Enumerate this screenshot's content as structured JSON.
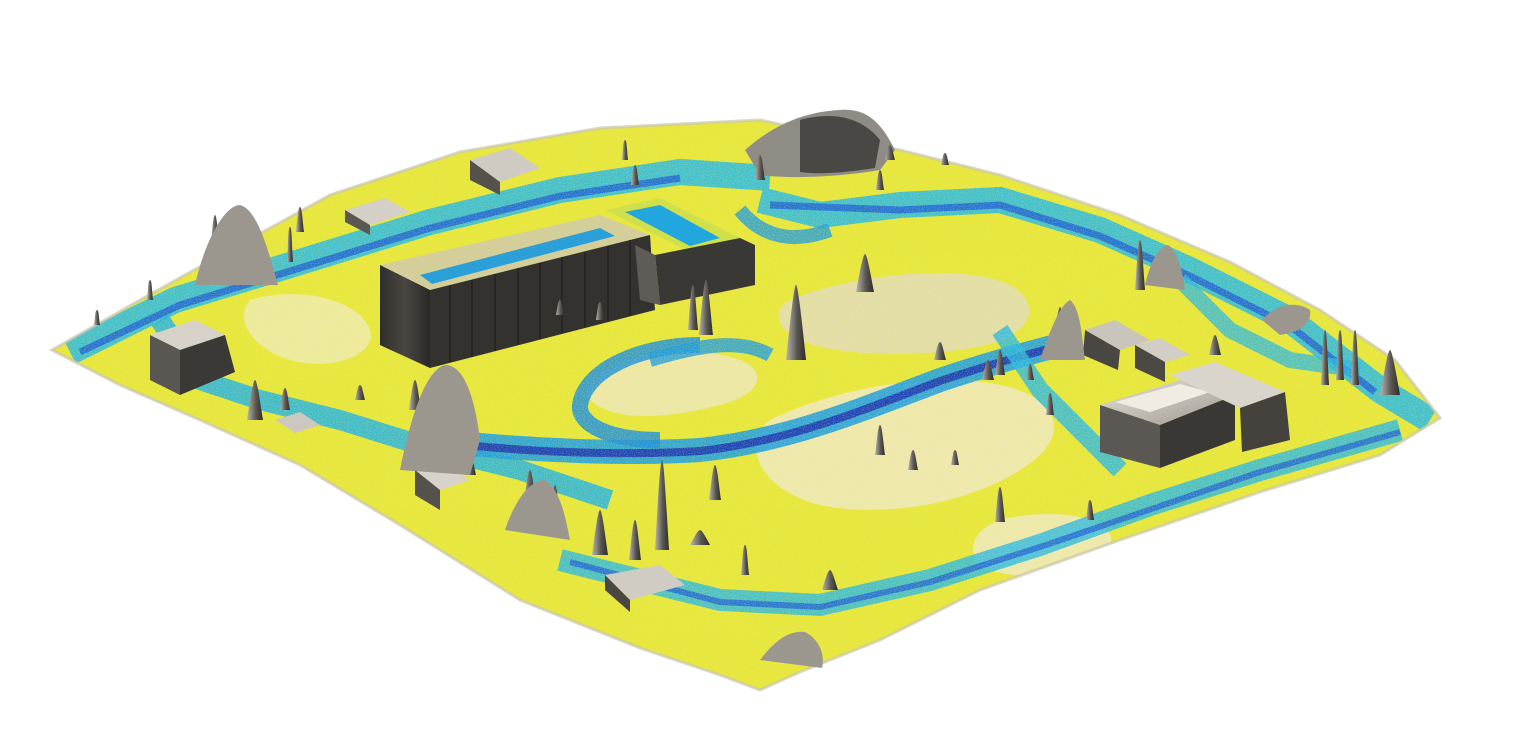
{
  "scene": {
    "kind": "3d-terrain-surface-model",
    "background": "#ffffff",
    "labels": []
  },
  "palette": {
    "ground_yellow": "#e8e83a",
    "ground_pale": "#f3f0a6",
    "lawn_cream": "#e9e2b8",
    "path_cyan": "#1fb3e6",
    "path_blue": "#1f5fd6",
    "deep_blue": "#1a2fb0",
    "building_dark": "#3c3a37",
    "building_mid": "#75726c",
    "building_light": "#cfcbc2",
    "tree_gray": "#8c8983"
  },
  "features": {
    "buildings": [
      "long-hall",
      "north-annex",
      "east-hall",
      "east-wing",
      "west-blocks",
      "north-mound"
    ],
    "trees": "tree-spikes",
    "paths": [
      "perimeter-road",
      "central-loop-path",
      "west-path"
    ]
  }
}
